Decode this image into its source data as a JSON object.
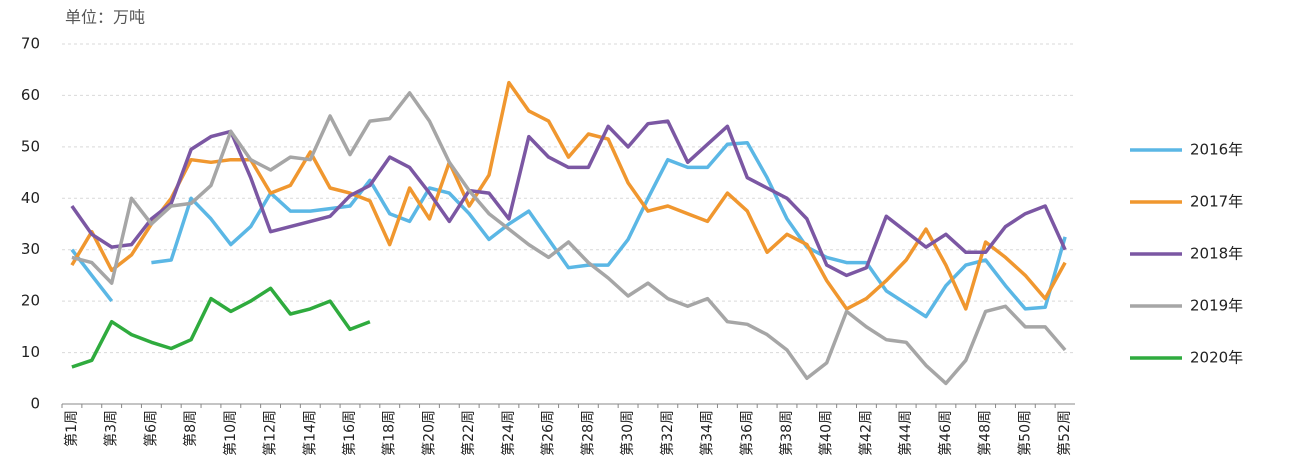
{
  "chart_data": {
    "type": "line",
    "subtitle": "单位：万吨",
    "categories": [
      "第1周",
      null,
      "第3周",
      null,
      "第6周",
      null,
      "第8周",
      null,
      "第10周",
      null,
      "第12周",
      null,
      "第14周",
      null,
      "第16周",
      null,
      "第18周",
      null,
      "第20周",
      null,
      "第22周",
      null,
      "第24周",
      null,
      "第26周",
      null,
      "第28周",
      null,
      "第30周",
      null,
      "第32周",
      null,
      "第34周",
      null,
      "第36周",
      null,
      "第38周",
      null,
      "第40周",
      null,
      "第42周",
      null,
      "第44周",
      null,
      "第46周",
      null,
      "第48周",
      null,
      "第50周",
      null,
      "第52周"
    ],
    "ylim": [
      0,
      70
    ],
    "yticks": [
      0,
      10,
      20,
      30,
      40,
      50,
      60,
      70
    ],
    "grid": true,
    "legend": "right",
    "series": [
      {
        "name": "2016年",
        "color": "#5bb7e5",
        "values": [
          30,
          25,
          20,
          null,
          27.5,
          28,
          40,
          36,
          31,
          34.5,
          41,
          37.5,
          37.5,
          38,
          38.5,
          43.5,
          37,
          35.5,
          42,
          41,
          37,
          32,
          35,
          37.5,
          32,
          26.5,
          27,
          27,
          32,
          40,
          47.5,
          46,
          46,
          50.5,
          50.8,
          44,
          36,
          30.5,
          28.5,
          27.5,
          27.5,
          22,
          19.5,
          17,
          23,
          27,
          28,
          23,
          18.5,
          18.8,
          32.5
        ]
      },
      {
        "name": "2017年",
        "color": "#f0972f",
        "values": [
          27,
          33.5,
          26,
          29,
          35,
          40,
          47.5,
          47,
          47.5,
          47.5,
          41,
          42.5,
          49,
          42,
          41,
          39.5,
          31,
          42,
          36,
          47,
          38.5,
          44.5,
          62.5,
          57,
          55,
          48,
          52.5,
          51.5,
          43,
          37.5,
          38.5,
          37,
          35.5,
          41,
          37.5,
          29.5,
          33,
          31,
          24,
          18.5,
          20.5,
          24,
          28,
          34,
          27,
          18.5,
          31.5,
          28.5,
          25,
          20.5,
          27.5
        ]
      },
      {
        "name": "2018年",
        "color": "#7b57a3",
        "values": [
          38.5,
          33,
          30.5,
          31,
          36,
          39,
          49.5,
          52,
          53,
          44,
          33.5,
          34.5,
          35.5,
          36.5,
          40.5,
          42.5,
          48,
          46,
          41,
          35.5,
          41.5,
          41,
          36,
          52,
          48,
          46,
          46,
          54,
          50,
          54.5,
          55,
          47,
          50.5,
          54,
          44,
          42,
          40,
          36,
          27,
          25,
          26.5,
          36.5,
          33.5,
          30.5,
          33,
          29.5,
          29.5,
          34.5,
          37,
          38.5,
          30
        ]
      },
      {
        "name": "2019年",
        "color": "#a6a6a6",
        "values": [
          28.5,
          27.5,
          23.5,
          40,
          35,
          38.5,
          39,
          42.5,
          53,
          47.5,
          45.5,
          48,
          47.5,
          56,
          48.5,
          55,
          55.5,
          60.5,
          55,
          47,
          41.5,
          37,
          34,
          31,
          28.5,
          31.5,
          27.5,
          24.5,
          21,
          23.5,
          20.5,
          19,
          20.5,
          16,
          15.5,
          13.5,
          10.5,
          5,
          8,
          18,
          15,
          12.5,
          12,
          7.5,
          4,
          8.5,
          18,
          19,
          15,
          15,
          10.5
        ]
      },
      {
        "name": "2020年",
        "color": "#2fab3e",
        "values": [
          7.2,
          8.5,
          16,
          13.5,
          12,
          10.8,
          12.5,
          20.5,
          18,
          20,
          22.5,
          17.5,
          18.5,
          20,
          14.5,
          16,
          null,
          null,
          null,
          null,
          null,
          null,
          null,
          null,
          null,
          null,
          null,
          null,
          null,
          null,
          null,
          null,
          null,
          null,
          null,
          null,
          null,
          null,
          null,
          null,
          null,
          null,
          null,
          null,
          null,
          null,
          null,
          null,
          null,
          null,
          null
        ]
      }
    ]
  }
}
